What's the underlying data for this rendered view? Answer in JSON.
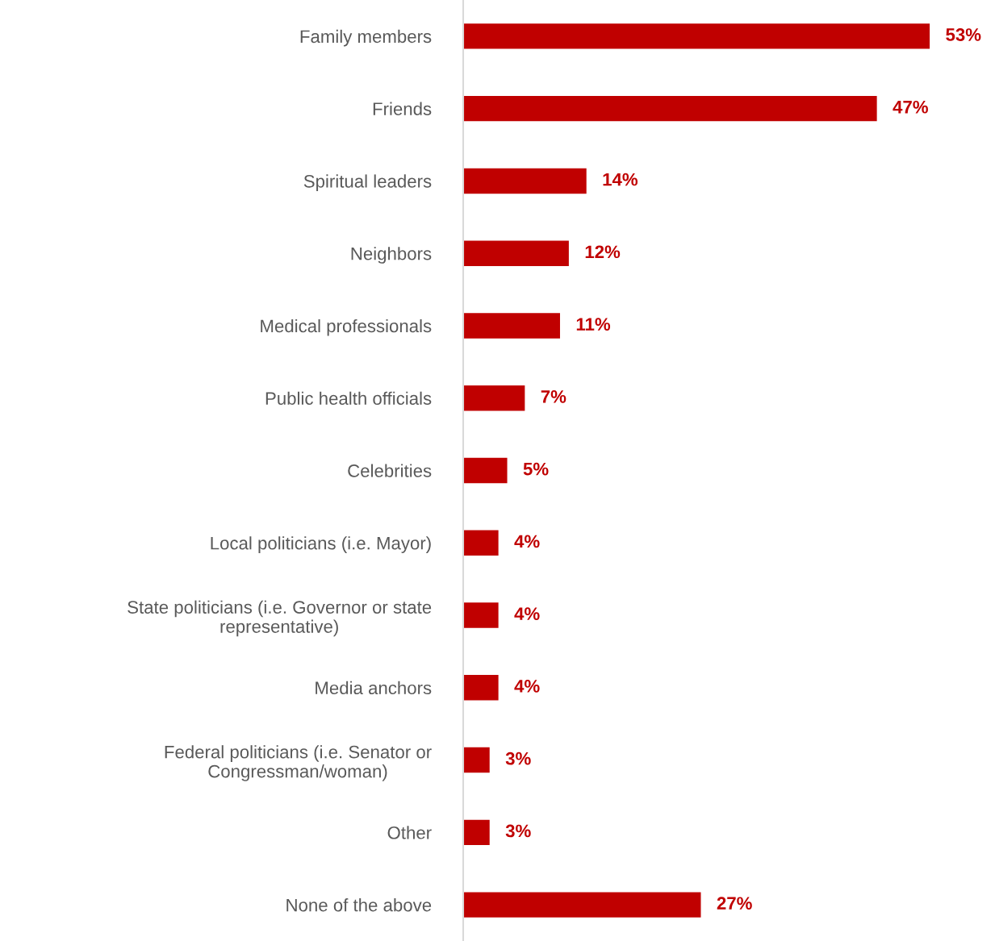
{
  "chart_data": {
    "type": "bar",
    "orientation": "horizontal",
    "categories": [
      "Family members",
      "Friends",
      "Spiritual leaders",
      "Neighbors",
      "Medical professionals",
      "Public health officials",
      "Celebrities",
      "Local politicians (i.e. Mayor)",
      "State politicians (i.e. Governor or state\nrepresentative)",
      "Media anchors",
      "Federal politicians (i.e. Senator or\nCongressman/woman)",
      "Other",
      "None of the above"
    ],
    "values": [
      53,
      47,
      14,
      12,
      11,
      7,
      5,
      4,
      4,
      4,
      3,
      3,
      27
    ],
    "value_labels": [
      "53%",
      "47%",
      "14%",
      "12%",
      "11%",
      "7%",
      "5%",
      "4%",
      "4%",
      "4%",
      "3%",
      "3%",
      "27%"
    ],
    "color": "#c00000",
    "grid": false,
    "legend": false
  }
}
